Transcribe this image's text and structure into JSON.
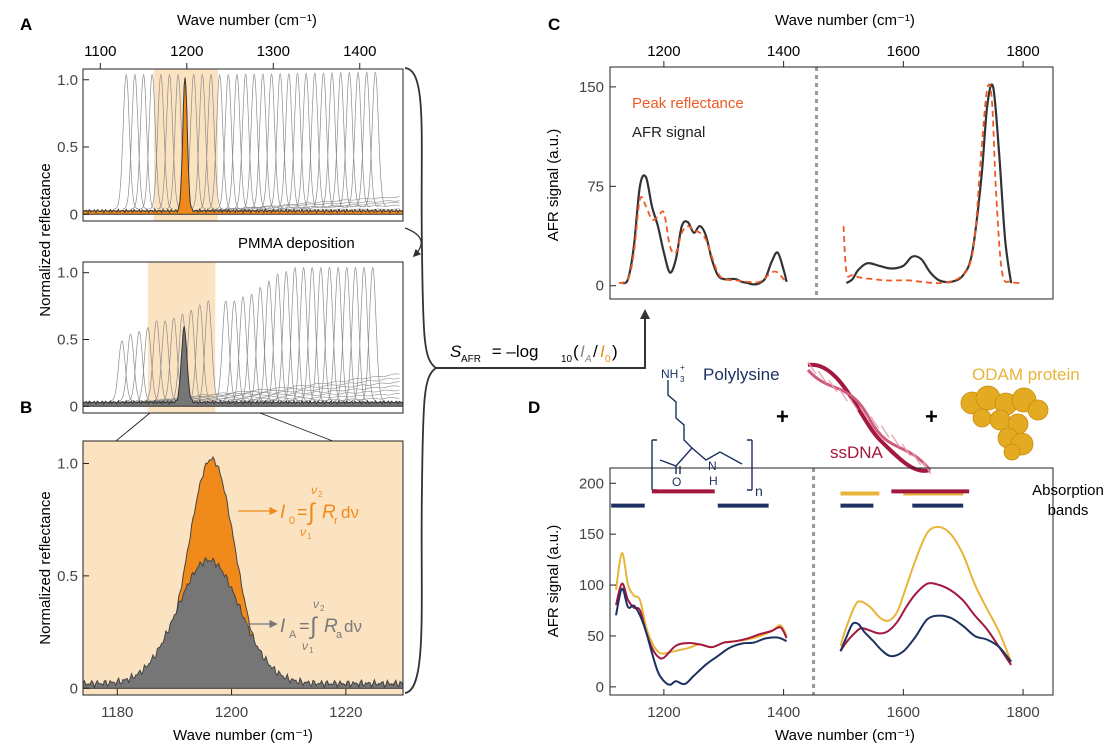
{
  "panels": {
    "A": "A",
    "B": "B",
    "C": "C",
    "D": "D"
  },
  "colors": {
    "orange": "#f08a1a",
    "shade": "#fbe3c2",
    "gray_fill": "#767676",
    "thin_gray": "#8c8c8c",
    "dark": "#333333",
    "dashed_orange": "#ef5a24",
    "navy": "#1c3161",
    "crimson": "#a3183e",
    "gold": "#e8b43a"
  },
  "panelA": {
    "top_axis_title": "Wave number (cm⁻¹)",
    "ylabel": "Normalized reflectance",
    "arrow_label": "PMMA deposition"
  },
  "panelB": {
    "ylabel": "Normalized reflectance",
    "xlabel": "Wave number (cm⁻¹)",
    "i0_label": "I",
    "i0_sub": "0",
    "i0_eq": "=",
    "i0_int_top": "ν",
    "i0_int_top_sub": "2",
    "i0_int_bottom": "ν",
    "i0_int_bottom_sub": "1",
    "i0_integrand": "R",
    "i0_integrand_sub": "r",
    "i0_d": "dν",
    "ia_label": "I",
    "ia_sub": "A",
    "ia_eq": "=",
    "ia_int_top": "ν",
    "ia_int_top_sub": "2",
    "ia_int_bottom": "ν",
    "ia_int_bottom_sub": "1",
    "ia_integrand": "R",
    "ia_integrand_sub": "a",
    "ia_d": "dν"
  },
  "formula": {
    "s": "S",
    "s_sub": "AFR",
    "eq": " = –log",
    "log_sub": "10",
    "open": "(",
    "ia": "I",
    "ia_sub": "A",
    "slash": "/",
    "i0": "I",
    "i0_sub": "0",
    "close": ")"
  },
  "panelC": {
    "top_axis_title": "Wave number (cm⁻¹)",
    "ylabel": "AFR signal (a.u.)",
    "legend_peak": "Peak reflectance",
    "legend_afr": "AFR signal"
  },
  "panelD": {
    "xlabel": "Wave number (cm⁻¹)",
    "ylabel": "AFR signal (a.u.)",
    "polylysine": "Polylysine",
    "ssdna": "ssDNA",
    "odam": "ODAM protein",
    "plus1": "+",
    "plus2": "+",
    "absorption_line1": "Absorption",
    "absorption_line2": "bands",
    "nh3": "NH",
    "nh3_sub": "3",
    "nh3_sup": "+",
    "o_atom": "O",
    "n_atom": "N",
    "h_atom": "H",
    "n_sub": "n"
  },
  "chart_data": [
    {
      "id": "A-top",
      "type": "line",
      "xlabel": "Wave number (cm⁻¹)",
      "ylabel": "Normalized reflectance",
      "x_ticks": [
        1100,
        1200,
        1300,
        1400
      ],
      "y_ticks": [
        0,
        0.5,
        1.0
      ],
      "y_tick_labels": [
        "0",
        "0.5",
        "1.0"
      ],
      "xlim": [
        1080,
        1450
      ],
      "ylim": [
        -0.05,
        1.08
      ],
      "shaded_band": [
        1162,
        1236
      ],
      "highlighted_peak": {
        "center": 1198,
        "height": 1.0,
        "fill": "orange"
      },
      "gray_peak_centers": [
        1130,
        1140,
        1150,
        1160,
        1170,
        1180,
        1190,
        1208,
        1218,
        1228,
        1238,
        1248,
        1258,
        1268,
        1278,
        1288,
        1298,
        1308,
        1318,
        1328,
        1338,
        1348,
        1358,
        1368,
        1378,
        1388,
        1398,
        1408,
        1418
      ],
      "gray_peak_height": 1.0
    },
    {
      "id": "A-bottom",
      "type": "line",
      "ylabel": "Normalized reflectance",
      "y_ticks": [
        0,
        0.5,
        1.0
      ],
      "y_tick_labels": [
        "0",
        "0.5",
        "1.0"
      ],
      "xlim": [
        1080,
        1450
      ],
      "ylim": [
        -0.05,
        1.08
      ],
      "shaded_band": [
        1155,
        1233
      ],
      "highlighted_peak": {
        "center": 1197,
        "height": 0.56,
        "fill": "gray"
      },
      "gray_peaks": [
        [
          1125,
          0.45
        ],
        [
          1135,
          0.5
        ],
        [
          1145,
          0.52
        ],
        [
          1155,
          0.55
        ],
        [
          1165,
          0.6
        ],
        [
          1175,
          0.6
        ],
        [
          1185,
          0.62
        ],
        [
          1195,
          0.65
        ],
        [
          1205,
          0.68
        ],
        [
          1215,
          0.72
        ],
        [
          1225,
          0.75
        ],
        [
          1245,
          0.75
        ],
        [
          1255,
          0.75
        ],
        [
          1265,
          0.78
        ],
        [
          1275,
          0.8
        ],
        [
          1285,
          0.85
        ],
        [
          1295,
          0.9
        ],
        [
          1305,
          0.95
        ],
        [
          1315,
          0.97
        ],
        [
          1325,
          1.0
        ],
        [
          1335,
          1.0
        ],
        [
          1345,
          1.0
        ],
        [
          1355,
          1.0
        ],
        [
          1365,
          1.0
        ],
        [
          1375,
          1.0
        ],
        [
          1385,
          1.0
        ],
        [
          1395,
          1.0
        ],
        [
          1405,
          1.0
        ],
        [
          1415,
          1.0
        ]
      ]
    },
    {
      "id": "B",
      "type": "area",
      "xlabel": "Wave number (cm⁻¹)",
      "ylabel": "Normalized reflectance",
      "x_ticks": [
        1180,
        1200,
        1220
      ],
      "y_ticks": [
        0,
        0.5,
        1.0
      ],
      "y_tick_labels": [
        "0",
        "0.5",
        "1.0"
      ],
      "xlim": [
        1174,
        1230
      ],
      "ylim": [
        -0.03,
        1.1
      ],
      "reference_peak": {
        "name": "I0",
        "center": 1196.5,
        "height": 1.0,
        "width": 4.1,
        "baseline": 0.02
      },
      "analyte_peak": {
        "name": "IA",
        "center": 1196.0,
        "height": 0.55,
        "width": 5.5,
        "baseline": 0.02
      }
    },
    {
      "id": "C",
      "type": "line",
      "xlabel": "Wave number (cm⁻¹)",
      "ylabel": "AFR signal (a.u.)",
      "x_ticks": [
        1200,
        1400,
        1600,
        1800
      ],
      "y_ticks": [
        0,
        75,
        150
      ],
      "xlim": [
        1110,
        1850
      ],
      "ylim": [
        -10,
        165
      ],
      "gap": [
        1410,
        1500
      ],
      "legend": [
        "Peak reflectance",
        "AFR signal"
      ],
      "series": [
        {
          "name": "AFR signal",
          "style": "solid-dark",
          "segments": [
            {
              "x": [
                1130,
                1140,
                1150,
                1160,
                1170,
                1180,
                1190,
                1200,
                1210,
                1220,
                1230,
                1240,
                1250,
                1260,
                1270,
                1280,
                1290,
                1300,
                1310,
                1320,
                1330,
                1340,
                1350,
                1360,
                1370,
                1380,
                1390,
                1400,
                1405
              ],
              "y": [
                2,
                5,
                30,
                75,
                82,
                60,
                45,
                25,
                10,
                20,
                45,
                48,
                40,
                45,
                38,
                20,
                8,
                5,
                5,
                5,
                3,
                2,
                1,
                2,
                6,
                18,
                25,
                12,
                3
              ]
            },
            {
              "x": [
                1505,
                1515,
                1525,
                1540,
                1560,
                1580,
                1600,
                1615,
                1630,
                1645,
                1660,
                1680,
                1700,
                1715,
                1730,
                1740,
                1750,
                1760,
                1770,
                1780
              ],
              "y": [
                2,
                5,
                12,
                17,
                15,
                13,
                15,
                22,
                20,
                10,
                4,
                3,
                8,
                25,
                80,
                135,
                150,
                100,
                35,
                2
              ]
            }
          ]
        },
        {
          "name": "Peak reflectance",
          "style": "dashed-orange",
          "segments": [
            {
              "x": [
                1125,
                1140,
                1150,
                1160,
                1170,
                1180,
                1190,
                1200,
                1210,
                1220,
                1230,
                1240,
                1250,
                1260,
                1270,
                1280,
                1290,
                1300,
                1320,
                1340,
                1360,
                1380,
                1390,
                1400,
                1405
              ],
              "y": [
                2,
                5,
                25,
                65,
                60,
                50,
                52,
                55,
                30,
                25,
                40,
                45,
                42,
                40,
                35,
                22,
                10,
                5,
                4,
                3,
                3,
                10,
                10,
                5,
                3
              ]
            },
            {
              "x": [
                1500,
                1505,
                1515,
                1530,
                1550,
                1570,
                1590,
                1610,
                1630,
                1660,
                1690,
                1710,
                1720,
                1730,
                1740,
                1748,
                1755,
                1765,
                1780,
                1800
              ],
              "y": [
                45,
                10,
                8,
                6,
                5,
                4,
                4,
                4,
                3,
                2,
                5,
                15,
                40,
                100,
                148,
                140,
                70,
                10,
                3,
                2
              ]
            }
          ]
        }
      ]
    },
    {
      "id": "D",
      "type": "line",
      "xlabel": "Wave number (cm⁻¹)",
      "ylabel": "AFR signal (a.u.)",
      "x_ticks": [
        1200,
        1400,
        1600,
        1800
      ],
      "y_ticks": [
        0,
        50,
        100,
        150,
        200
      ],
      "xlim": [
        1110,
        1850
      ],
      "ylim": [
        -8,
        215
      ],
      "gap": [
        1410,
        1490
      ],
      "absorption_bands": [
        {
          "molecule": "ODAM protein",
          "color": "gold",
          "ranges": [
            [
              1495,
              1560
            ],
            [
              1600,
              1700
            ]
          ],
          "y": 190
        },
        {
          "molecule": "ssDNA",
          "color": "crimson",
          "ranges": [
            [
              1180,
              1285
            ],
            [
              1580,
              1710
            ]
          ],
          "y": 192
        },
        {
          "molecule": "Polylysine",
          "color": "navy",
          "ranges": [
            [
              1112,
              1168
            ],
            [
              1290,
              1375
            ],
            [
              1495,
              1550
            ],
            [
              1615,
              1700
            ]
          ],
          "y": 178
        }
      ],
      "series": [
        {
          "name": "ODAM protein",
          "color": "gold",
          "segments": [
            {
              "x": [
                1120,
                1130,
                1140,
                1150,
                1160,
                1170,
                1180,
                1190,
                1200,
                1220,
                1240,
                1260,
                1280,
                1300,
                1320,
                1340,
                1360,
                1380,
                1395,
                1405
              ],
              "y": [
                95,
                130,
                100,
                90,
                85,
                60,
                45,
                35,
                32,
                35,
                38,
                42,
                40,
                42,
                45,
                47,
                50,
                55,
                60,
                50
              ]
            },
            {
              "x": [
                1495,
                1505,
                1520,
                1530,
                1545,
                1560,
                1575,
                1590,
                1605,
                1620,
                1640,
                1660,
                1680,
                1700,
                1720,
                1740,
                1760,
                1780
              ],
              "y": [
                40,
                60,
                82,
                84,
                78,
                68,
                65,
                75,
                100,
                125,
                150,
                157,
                150,
                130,
                100,
                75,
                55,
                25
              ]
            }
          ]
        },
        {
          "name": "ssDNA",
          "color": "crimson",
          "segments": [
            {
              "x": [
                1120,
                1130,
                1140,
                1150,
                1160,
                1170,
                1180,
                1190,
                1200,
                1220,
                1240,
                1260,
                1280,
                1300,
                1320,
                1340,
                1360,
                1380,
                1395,
                1405
              ],
              "y": [
                80,
                100,
                85,
                78,
                75,
                55,
                40,
                30,
                28,
                40,
                43,
                42,
                40,
                42,
                45,
                48,
                52,
                55,
                58,
                48
              ]
            },
            {
              "x": [
                1495,
                1505,
                1520,
                1530,
                1545,
                1560,
                1575,
                1590,
                1605,
                1620,
                1640,
                1660,
                1680,
                1700,
                1720,
                1740,
                1760,
                1780
              ],
              "y": [
                35,
                45,
                55,
                58,
                55,
                52,
                55,
                65,
                80,
                92,
                100,
                100,
                95,
                85,
                70,
                55,
                40,
                22
              ]
            }
          ]
        },
        {
          "name": "Polylysine",
          "color": "navy",
          "segments": [
            {
              "x": [
                1120,
                1130,
                1140,
                1150,
                1160,
                1170,
                1180,
                1190,
                1200,
                1210,
                1220,
                1235,
                1250,
                1270,
                1290,
                1310,
                1330,
                1350,
                1370,
                1390,
                1405
              ],
              "y": [
                70,
                95,
                78,
                80,
                70,
                55,
                35,
                15,
                5,
                2,
                5,
                3,
                12,
                22,
                30,
                38,
                42,
                45,
                47,
                48,
                45
              ]
            },
            {
              "x": [
                1495,
                1505,
                1515,
                1525,
                1535,
                1550,
                1565,
                1580,
                1600,
                1620,
                1640,
                1660,
                1680,
                1700,
                1720,
                1740,
                1760,
                1780
              ],
              "y": [
                35,
                50,
                62,
                62,
                55,
                45,
                35,
                30,
                35,
                50,
                65,
                70,
                68,
                60,
                50,
                45,
                40,
                25
              ]
            }
          ]
        }
      ]
    }
  ]
}
